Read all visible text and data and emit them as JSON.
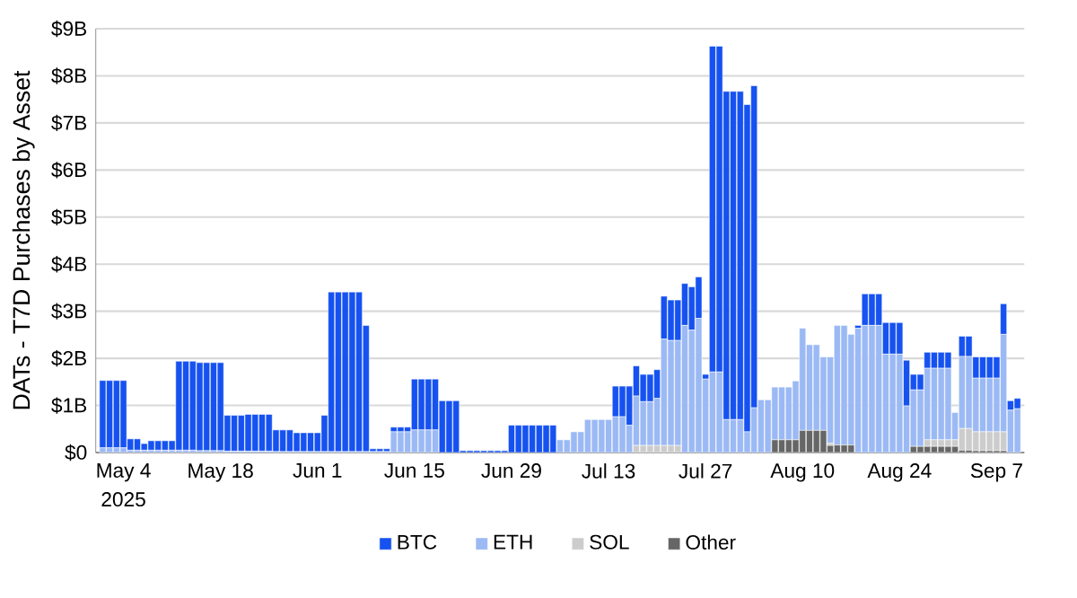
{
  "chart_data": {
    "type": "bar",
    "stacked": true,
    "ylabel": "DATs - T7D Purchases by Asset",
    "x": [
      "2025-05-01",
      "2025-05-02",
      "2025-05-03",
      "2025-05-04",
      "2025-05-05",
      "2025-05-06",
      "2025-05-07",
      "2025-05-08",
      "2025-05-09",
      "2025-05-10",
      "2025-05-11",
      "2025-05-12",
      "2025-05-13",
      "2025-05-14",
      "2025-05-15",
      "2025-05-16",
      "2025-05-17",
      "2025-05-18",
      "2025-05-19",
      "2025-05-20",
      "2025-05-21",
      "2025-05-22",
      "2025-05-23",
      "2025-05-24",
      "2025-05-25",
      "2025-05-26",
      "2025-05-27",
      "2025-05-28",
      "2025-05-29",
      "2025-05-30",
      "2025-05-31",
      "2025-06-01",
      "2025-06-02",
      "2025-06-03",
      "2025-06-04",
      "2025-06-05",
      "2025-06-06",
      "2025-06-07",
      "2025-06-08",
      "2025-06-09",
      "2025-06-10",
      "2025-06-11",
      "2025-06-12",
      "2025-06-13",
      "2025-06-14",
      "2025-06-15",
      "2025-06-16",
      "2025-06-17",
      "2025-06-18",
      "2025-06-19",
      "2025-06-20",
      "2025-06-21",
      "2025-06-22",
      "2025-06-23",
      "2025-06-24",
      "2025-06-25",
      "2025-06-26",
      "2025-06-27",
      "2025-06-28",
      "2025-06-29",
      "2025-06-30",
      "2025-07-01",
      "2025-07-02",
      "2025-07-03",
      "2025-07-04",
      "2025-07-05",
      "2025-07-06",
      "2025-07-07",
      "2025-07-08",
      "2025-07-09",
      "2025-07-10",
      "2025-07-11",
      "2025-07-12",
      "2025-07-13",
      "2025-07-14",
      "2025-07-15",
      "2025-07-16",
      "2025-07-17",
      "2025-07-18",
      "2025-07-19",
      "2025-07-20",
      "2025-07-21",
      "2025-07-22",
      "2025-07-23",
      "2025-07-24",
      "2025-07-25",
      "2025-07-26",
      "2025-07-27",
      "2025-07-28",
      "2025-07-29",
      "2025-07-30",
      "2025-07-31",
      "2025-08-01",
      "2025-08-02",
      "2025-08-03",
      "2025-08-04",
      "2025-08-05",
      "2025-08-06",
      "2025-08-07",
      "2025-08-08",
      "2025-08-09",
      "2025-08-10",
      "2025-08-11",
      "2025-08-12",
      "2025-08-13",
      "2025-08-14",
      "2025-08-15",
      "2025-08-16",
      "2025-08-17",
      "2025-08-18",
      "2025-08-19",
      "2025-08-20",
      "2025-08-21",
      "2025-08-22",
      "2025-08-23",
      "2025-08-24",
      "2025-08-25",
      "2025-08-26",
      "2025-08-27",
      "2025-08-28",
      "2025-08-29",
      "2025-08-30",
      "2025-08-31",
      "2025-09-01",
      "2025-09-02",
      "2025-09-03",
      "2025-09-04",
      "2025-09-05",
      "2025-09-06",
      "2025-09-07",
      "2025-09-08",
      "2025-09-09",
      "2025-09-10"
    ],
    "series": [
      {
        "name": "Other",
        "color": "#666666",
        "values": [
          0,
          0,
          0,
          0,
          0,
          0,
          0,
          0,
          0,
          0,
          0,
          0,
          0,
          0,
          0,
          0,
          0,
          0,
          0,
          0,
          0,
          0,
          0,
          0,
          0,
          0,
          0,
          0,
          0,
          0,
          0,
          0,
          0,
          0,
          0,
          0,
          0,
          0,
          0,
          0,
          0,
          0,
          0,
          0,
          0,
          0,
          0,
          0,
          0,
          null,
          null,
          null,
          0,
          0,
          0,
          0,
          0,
          0,
          0,
          0,
          0,
          0,
          0,
          0,
          0,
          0,
          0,
          0,
          0,
          0,
          0,
          0,
          0,
          0,
          0,
          0,
          0,
          0,
          0,
          0,
          0,
          0,
          0,
          0,
          0,
          0,
          0,
          0,
          0,
          0,
          0,
          0,
          0,
          0,
          0,
          0,
          0,
          0.27,
          0.27,
          0.27,
          0.27,
          0.47,
          0.47,
          0.47,
          0.47,
          0.15,
          0.16,
          0.16,
          0.16,
          0,
          0,
          0,
          0,
          0,
          0,
          0,
          0,
          0.13,
          0.13,
          0.13,
          0.13,
          0.13,
          0.13,
          0.13,
          0.05,
          0.05,
          0.04,
          0.04,
          0.04,
          0.04,
          0.04,
          0,
          0
        ]
      },
      {
        "name": "SOL",
        "color": "#cccccc",
        "values": [
          0,
          0,
          0,
          0,
          0,
          0,
          0,
          0,
          0,
          0,
          0,
          0,
          0,
          0,
          0,
          0,
          0,
          0,
          0,
          0,
          0,
          0,
          0,
          0,
          0,
          0,
          0,
          0,
          0,
          0,
          0,
          0,
          0,
          0,
          0,
          0,
          0,
          0,
          0,
          0,
          0,
          0,
          0,
          0,
          0,
          0,
          0,
          0,
          0,
          0,
          0,
          0,
          0,
          0,
          0,
          0,
          0,
          0,
          0,
          0,
          0,
          0,
          0,
          0,
          0,
          0,
          0,
          0,
          0,
          0,
          0,
          0,
          0,
          0,
          0,
          0,
          0,
          0.15,
          0.15,
          0.15,
          0.15,
          0.15,
          0.15,
          0.15,
          0,
          0,
          0,
          0,
          0,
          0,
          0,
          0,
          0,
          0,
          0,
          0,
          0,
          0,
          0,
          0,
          0,
          0,
          0,
          0,
          0,
          0.05,
          0,
          0,
          0,
          0,
          0,
          0,
          0,
          0,
          0,
          0,
          0,
          0,
          0,
          0.14,
          0.14,
          0.14,
          0.14,
          0.14,
          0.46,
          0.46,
          0.4,
          0.4,
          0.4,
          0.4,
          0.4,
          0,
          0
        ]
      },
      {
        "name": "ETH",
        "color": "#9bb9f4",
        "values": [
          0.1,
          0.1,
          0.1,
          0.1,
          0.05,
          0.05,
          0.05,
          0.05,
          0.05,
          0.05,
          0.05,
          0.05,
          0.05,
          0.05,
          0.04,
          0.04,
          0.04,
          0.04,
          0.03,
          0.03,
          0.03,
          0.03,
          0.03,
          0.03,
          0.03,
          0.02,
          0.02,
          0.02,
          0.02,
          0.02,
          0.02,
          0.02,
          0.02,
          0.02,
          0.02,
          0.02,
          0.02,
          0.02,
          0.02,
          0.02,
          0.02,
          0.02,
          0.44,
          0.44,
          0.44,
          0.48,
          0.48,
          0.48,
          0.48,
          0,
          0,
          0,
          0,
          0,
          0,
          0,
          0,
          0,
          0,
          0,
          0,
          0,
          0,
          0,
          0,
          0,
          0.27,
          0.27,
          0.44,
          0.44,
          0.7,
          0.7,
          0.7,
          0.7,
          0.76,
          0.76,
          0.58,
          1.05,
          0.93,
          0.93,
          1.0,
          2.26,
          2.23,
          2.23,
          2.7,
          2.6,
          2.85,
          1.56,
          1.71,
          1.71,
          0.7,
          0.7,
          0.7,
          0.44,
          0.95,
          1.12,
          1.12,
          1.12,
          1.12,
          1.12,
          1.25,
          2.17,
          1.82,
          1.82,
          1.56,
          1.83,
          2.54,
          2.54,
          2.35,
          2.64,
          2.7,
          2.7,
          2.7,
          2.09,
          2.09,
          2.09,
          0.99,
          1.2,
          1.2,
          1.52,
          1.52,
          1.52,
          1.52,
          0.58,
          1.53,
          1.53,
          1.14,
          1.14,
          1.14,
          1.14,
          2.07,
          0.9,
          0.93
        ]
      },
      {
        "name": "BTC",
        "color": "#1652f0",
        "values": [
          1.43,
          1.43,
          1.43,
          1.43,
          0.24,
          0.24,
          0.14,
          0.2,
          0.2,
          0.2,
          0.2,
          1.89,
          1.89,
          1.89,
          1.87,
          1.87,
          1.87,
          1.87,
          0.76,
          0.76,
          0.76,
          0.78,
          0.78,
          0.78,
          0.78,
          0.46,
          0.46,
          0.46,
          0.4,
          0.4,
          0.4,
          0.4,
          0.77,
          3.39,
          3.39,
          3.39,
          3.39,
          3.39,
          2.68,
          0.06,
          0.06,
          0.06,
          0.1,
          0.1,
          0.1,
          1.08,
          1.08,
          1.08,
          1.08,
          1.1,
          1.1,
          1.1,
          0.04,
          0.04,
          0.04,
          0.04,
          0.04,
          0.04,
          0.04,
          0.58,
          0.58,
          0.58,
          0.58,
          0.58,
          0.58,
          0.58,
          0,
          0,
          0,
          0,
          0,
          0,
          0,
          0,
          0.65,
          0.65,
          0.83,
          0.64,
          0.58,
          0.58,
          0.61,
          0.91,
          0.86,
          0.86,
          0.89,
          0.92,
          0.88,
          0.1,
          6.92,
          6.92,
          6.97,
          6.97,
          6.97,
          6.95,
          6.84,
          0,
          0,
          0,
          0,
          0,
          0,
          0,
          0,
          0,
          0,
          0,
          0,
          0,
          0,
          0.06,
          0.67,
          0.67,
          0.67,
          0.67,
          0.67,
          0.67,
          0.97,
          0.33,
          0.33,
          0.34,
          0.34,
          0.34,
          0.34,
          0,
          0.43,
          0.43,
          0.45,
          0.45,
          0.45,
          0.45,
          0.65,
          0.2,
          0.22
        ]
      }
    ],
    "xlim": [
      "2025-04-30",
      "2025-09-11"
    ],
    "xticks": [
      {
        "value": "2025-05-04",
        "label": "May 4"
      },
      {
        "value": "2025-05-18",
        "label": "May 18"
      },
      {
        "value": "2025-06-01",
        "label": "Jun 1"
      },
      {
        "value": "2025-06-15",
        "label": "Jun 15"
      },
      {
        "value": "2025-06-29",
        "label": "Jun 29"
      },
      {
        "value": "2025-07-13",
        "label": "Jul 13"
      },
      {
        "value": "2025-07-27",
        "label": "Jul 27"
      },
      {
        "value": "2025-08-10",
        "label": "Aug 10"
      },
      {
        "value": "2025-08-24",
        "label": "Aug 24"
      },
      {
        "value": "2025-09-07",
        "label": "Sep 7"
      }
    ],
    "ylim": [
      0,
      9
    ],
    "yticks": [
      {
        "value": 0,
        "label": "$0"
      },
      {
        "value": 1,
        "label": "$1B"
      },
      {
        "value": 2,
        "label": "$2B"
      },
      {
        "value": 3,
        "label": "$3B"
      },
      {
        "value": 4,
        "label": "$4B"
      },
      {
        "value": 5,
        "label": "$5B"
      },
      {
        "value": 6,
        "label": "$6B"
      },
      {
        "value": 7,
        "label": "$7B"
      },
      {
        "value": 8,
        "label": "$8B"
      },
      {
        "value": 9,
        "label": "$9B"
      }
    ],
    "grid": "y",
    "legend": "bottom",
    "annotations": [
      "2025"
    ]
  }
}
